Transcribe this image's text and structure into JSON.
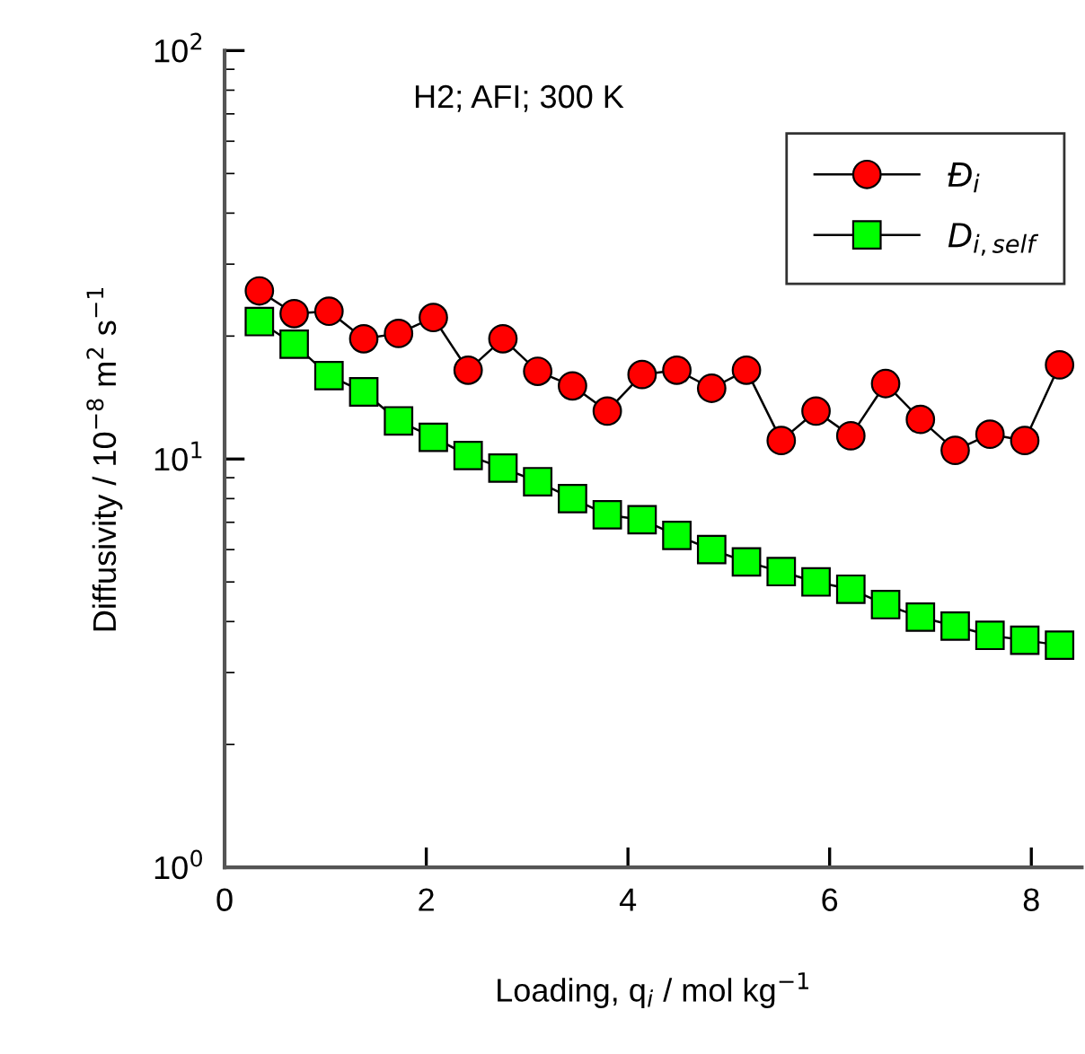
{
  "chart_data": {
    "type": "line",
    "xlabel": "Loading, q$_{i}$ / mol kg$^{−1}$",
    "ylabel": "Diffusivity / 10$^{−8}$ m$^{2}$ s$^{−1}$",
    "annotations": [
      "H2; AFI; 300 K"
    ],
    "x": [
      0.345,
      0.69,
      1.035,
      1.38,
      1.725,
      2.07,
      2.415,
      2.76,
      3.105,
      3.45,
      3.795,
      4.14,
      4.485,
      4.83,
      5.175,
      5.52,
      5.865,
      6.21,
      6.555,
      6.9,
      7.245,
      7.59,
      7.935,
      8.28
    ],
    "series": [
      {
        "name": "Đ$_{i}$",
        "color": "#ff0000",
        "marker": "circle",
        "values": [
          25.8,
          22.7,
          23.0,
          19.7,
          20.3,
          22.2,
          16.5,
          19.7,
          16.4,
          15.1,
          13.1,
          16.1,
          16.5,
          14.9,
          16.5,
          11.1,
          13.1,
          11.4,
          15.3,
          12.5,
          10.5,
          11.5,
          11.1,
          17.0
        ]
      },
      {
        "name": "D$_{i,self}$",
        "color": "#00ff00",
        "marker": "square",
        "values": [
          21.7,
          19.1,
          16.0,
          14.6,
          12.4,
          11.3,
          10.2,
          9.5,
          8.8,
          8.0,
          7.3,
          7.1,
          6.5,
          6.0,
          5.6,
          5.3,
          5.0,
          4.8,
          4.4,
          4.1,
          3.9,
          3.7,
          3.6,
          3.5
        ]
      }
    ],
    "xlim": [
      0,
      8.5
    ],
    "xticks": [
      0,
      2,
      4,
      6,
      8
    ],
    "ylim": [
      1,
      100
    ],
    "yticks": [
      {
        "value": 1,
        "label": "10$^{0}$"
      },
      {
        "value": 10,
        "label": "10$^{1}$"
      },
      {
        "value": 100,
        "label": "10$^{2}$"
      }
    ],
    "log": "y",
    "grid": false,
    "legend": "top right",
    "line_style": "solid"
  }
}
